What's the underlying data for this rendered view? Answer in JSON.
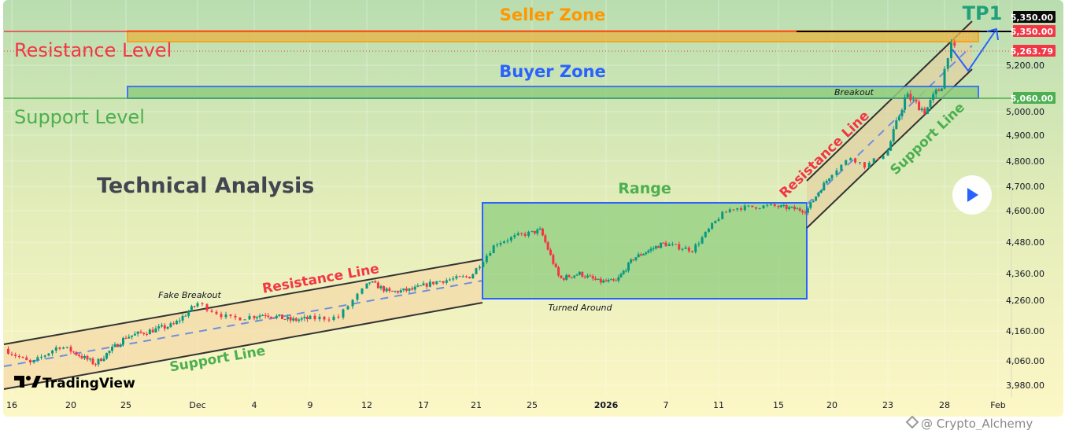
{
  "chart_data": {
    "type": "candlestick",
    "title": "Technical Analysis",
    "price_axis": {
      "ticks": [
        5200,
        5000,
        4900,
        4800,
        4700,
        4600,
        4480,
        4360,
        4260,
        4160,
        4060,
        3980
      ],
      "tick_labels": [
        "5,200.00",
        "5,000.00",
        "4,900.00",
        "4,800.00",
        "4,700.00",
        "4,600.00",
        "4,480.00",
        "4,360.00",
        "4,260.00",
        "4,160.00",
        "4,060.00",
        "3,980.00"
      ],
      "tags": [
        {
          "label": "5,350.00",
          "value": 5350,
          "color": "#0b0b0b",
          "name": "tp1-price-tag"
        },
        {
          "label": "5,350.00",
          "value": 5350,
          "color": "#f23645",
          "name": "resistance-price-tag"
        },
        {
          "label": "5,263.79",
          "value": 5263.79,
          "color": "#f23645",
          "name": "last-price-tag"
        },
        {
          "label": "5,060.00",
          "value": 5060,
          "color": "#4caf50",
          "name": "support-price-tag"
        }
      ]
    },
    "time_axis": {
      "labels": [
        "16",
        "20",
        "25",
        "Dec",
        "4",
        "9",
        "12",
        "17",
        "21",
        "25",
        "2026",
        "7",
        "11",
        "15",
        "20",
        "23",
        "28",
        "Feb"
      ],
      "days": [
        0,
        4,
        9,
        15,
        18,
        23,
        26,
        31,
        35,
        39,
        46,
        52,
        56,
        60,
        65,
        68,
        73,
        77
      ]
    },
    "price_path": [
      [
        -0.5,
        4100
      ],
      [
        1.3,
        4050
      ],
      [
        3.2,
        4110
      ],
      [
        6.2,
        4050
      ],
      [
        9,
        4140
      ],
      [
        13,
        4180
      ],
      [
        15,
        4250
      ],
      [
        16.7,
        4200
      ],
      [
        19,
        4215
      ],
      [
        21.3,
        4195
      ],
      [
        24.5,
        4205
      ],
      [
        26.2,
        4330
      ],
      [
        28,
        4290
      ],
      [
        30,
        4300
      ],
      [
        32,
        4330
      ],
      [
        34.6,
        4350
      ],
      [
        36.4,
        4475
      ],
      [
        38,
        4505
      ],
      [
        39.8,
        4525
      ],
      [
        41.6,
        4340
      ],
      [
        43.5,
        4360
      ],
      [
        45.3,
        4330
      ],
      [
        47,
        4330
      ],
      [
        48.8,
        4420
      ],
      [
        51.7,
        4475
      ],
      [
        54,
        4450
      ],
      [
        56.1,
        4580
      ],
      [
        56.9,
        4610
      ],
      [
        59.5,
        4620
      ],
      [
        62.6,
        4600
      ],
      [
        63.8,
        4680
      ],
      [
        66,
        4815
      ],
      [
        66.8,
        4780
      ],
      [
        68,
        4840
      ],
      [
        69.6,
        5070
      ],
      [
        71.3,
        5000
      ],
      [
        72.2,
        5080
      ],
      [
        72.7,
        5100
      ],
      [
        73.4,
        5290
      ],
      [
        73.9,
        5263.79
      ]
    ],
    "levels": {
      "resistance": 5350,
      "support": 5060,
      "last_price": 5263.79
    },
    "annotations": {
      "seller_zone": "Seller Zone",
      "buyer_zone": "Buyer Zone",
      "tp1": "TP1",
      "resistance_level": "Resistance Level",
      "support_level": "Support Level",
      "range": "Range",
      "turned_around": "Turned Around",
      "fake_breakout": "Fake Breakout",
      "breakout": "Breakout",
      "lower_channel_resistance": "Resistance Line",
      "lower_channel_support": "Support Line",
      "upper_channel_resistance": "Resistance Line",
      "upper_channel_support": "Support Line"
    },
    "colors": {
      "up": "#089981",
      "down": "#f23645",
      "seller_zone": "#ff9800",
      "buyer_zone": "#2962ff",
      "support": "#4caf50",
      "resistance": "#f23645",
      "tp1": "#22a07a"
    }
  },
  "branding": {
    "logo": "TradingView",
    "watermark": "@ Crypto_Alchemy"
  }
}
